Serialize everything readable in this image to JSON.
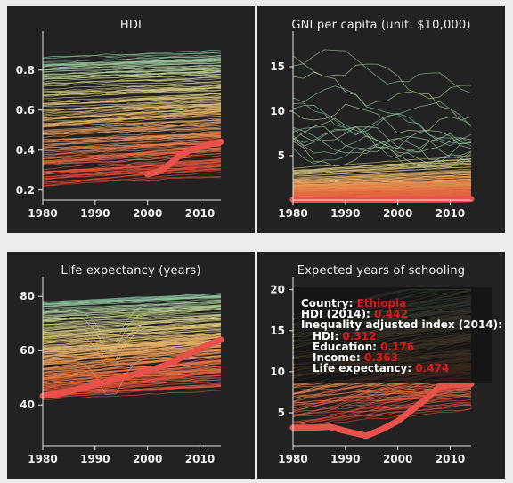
{
  "chart_data": [
    {
      "type": "line",
      "title": "HDI",
      "xlim": [
        1980,
        2014
      ],
      "ylim": [
        0.15,
        0.95
      ],
      "xticks": [
        1980,
        1990,
        2000,
        2010
      ],
      "yticks": [
        0.2,
        0.4,
        0.6,
        0.8
      ],
      "ytick_labels": [
        "0.2",
        "0.4",
        "0.6",
        "0.8"
      ],
      "highlight": {
        "name": "Ethiopia",
        "x": [
          2000,
          2002,
          2004,
          2006,
          2008,
          2010,
          2012,
          2014
        ],
        "y": [
          0.28,
          0.292,
          0.325,
          0.37,
          0.398,
          0.415,
          0.43,
          0.442
        ]
      },
      "background_series_count": 180
    },
    {
      "type": "line",
      "title": "GNI per capita (unit: $10,000)",
      "xlim": [
        1980,
        2014
      ],
      "ylim": [
        0,
        18
      ],
      "xticks": [
        1980,
        1990,
        2000,
        2010
      ],
      "yticks": [
        5,
        10,
        15
      ],
      "ytick_labels": [
        "5",
        "10",
        "15"
      ],
      "highlight": {
        "name": "Ethiopia",
        "x": [
          1980,
          1990,
          2000,
          2010,
          2014
        ],
        "y": [
          0.05,
          0.05,
          0.05,
          0.08,
          0.12
        ]
      },
      "background_series_count": 180
    },
    {
      "type": "line",
      "title": "Life expectancy (years)",
      "xlim": [
        1980,
        2014
      ],
      "ylim": [
        25,
        84
      ],
      "xticks": [
        1980,
        1990,
        2000,
        2010
      ],
      "yticks": [
        40,
        60,
        80
      ],
      "ytick_labels": [
        "40",
        "60",
        "80"
      ],
      "highlight": {
        "name": "Ethiopia",
        "x": [
          1980,
          1984,
          1988,
          1992,
          1996,
          2000,
          2004,
          2008,
          2012,
          2014
        ],
        "y": [
          43.3,
          44.5,
          46.5,
          48.5,
          50.5,
          52.5,
          55.0,
          59.0,
          62.5,
          64.0
        ]
      },
      "background_series_count": 180
    },
    {
      "type": "line",
      "title": "Expected years of schooling",
      "xlim": [
        1980,
        2014
      ],
      "ylim": [
        1,
        20.5
      ],
      "xticks": [
        1980,
        1990,
        2000,
        2010
      ],
      "yticks": [
        5,
        10,
        15,
        20
      ],
      "ytick_labels": [
        "5",
        "10",
        "15",
        "20"
      ],
      "highlight": {
        "name": "Ethiopia",
        "x": [
          1980,
          1984,
          1987,
          1990,
          1994,
          1997,
          2000,
          2003,
          2006,
          2008,
          2010,
          2014
        ],
        "y": [
          3.2,
          3.2,
          3.3,
          2.8,
          2.2,
          3.0,
          4.0,
          5.5,
          7.0,
          8.2,
          8.4,
          8.5
        ]
      },
      "background_series_count": 180
    }
  ],
  "tooltip": {
    "country_label": "Country:",
    "country_value": "Ethiopia",
    "hdi_label": "HDI (2014):",
    "hdi_value": "0.442",
    "ineq_label": "Inequality adjusted index (2014):",
    "ineq_hdi_label": "HDI:",
    "ineq_hdi_value": "0.312",
    "education_label": "Education:",
    "education_value": "0.176",
    "income_label": "Income:",
    "income_value": "0.363",
    "life_label": "Life expectancy:",
    "life_value": "0.474"
  },
  "colors": {
    "panel_bg": "#222222",
    "page_bg": "#ececec",
    "axis": "#e6e6e6",
    "highlight": "#e8504c",
    "tooltip_value": "#e0161b"
  }
}
